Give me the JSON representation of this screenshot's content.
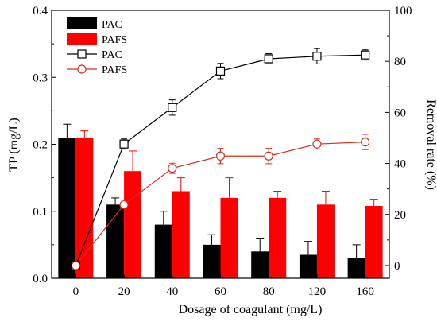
{
  "chart_data": {
    "type": "bar+line",
    "categories": [
      "0",
      "20",
      "40",
      "60",
      "80",
      "120",
      "160"
    ],
    "xlabel": "Dosage of coagulant (mg/L)",
    "ylabel_left": "TP (mg/L)",
    "ylabel_right": "Removal rate (%)",
    "ylim_left": [
      0,
      0.4
    ],
    "yticks_left": [
      "0.0",
      "0.1",
      "0.2",
      "0.3",
      "0.4"
    ],
    "ylim_right": [
      -5,
      100
    ],
    "yticks_right": [
      "0",
      "20",
      "40",
      "60",
      "80",
      "100"
    ],
    "bar_series": [
      {
        "name": "PAC",
        "color": "#000000",
        "values": [
          0.21,
          0.11,
          0.08,
          0.05,
          0.04,
          0.035,
          0.03
        ],
        "errors": [
          0.02,
          0.01,
          0.02,
          0.015,
          0.02,
          0.02,
          0.02
        ]
      },
      {
        "name": "PAFS",
        "color": "#ff0000",
        "values": [
          0.21,
          0.16,
          0.13,
          0.12,
          0.12,
          0.11,
          0.108
        ],
        "errors": [
          0.01,
          0.03,
          0.02,
          0.03,
          0.01,
          0.02,
          0.01
        ]
      }
    ],
    "line_series": [
      {
        "name": "PAC",
        "color": "#000000",
        "marker": "square",
        "values": [
          0,
          47.6,
          61.9,
          76.2,
          81,
          82,
          82.5
        ],
        "errors": [
          0,
          2,
          3,
          3,
          2,
          3,
          2
        ]
      },
      {
        "name": "PAFS",
        "color": "#d03020",
        "marker": "circle",
        "values": [
          0,
          23.8,
          38.1,
          42.9,
          42.9,
          47.6,
          48.4
        ],
        "errors": [
          0,
          0,
          2,
          3,
          3,
          2,
          3
        ]
      }
    ],
    "legend": "top-left",
    "grid": false
  }
}
